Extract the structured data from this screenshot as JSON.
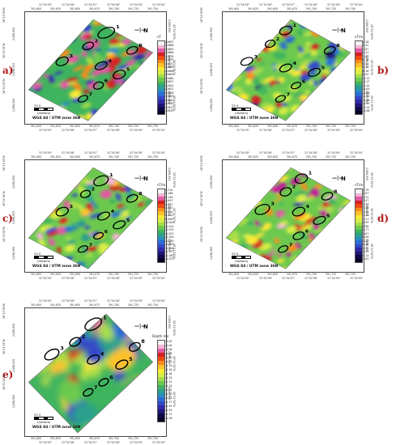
{
  "panels": [
    {
      "tag": "a)",
      "color_title": "nT",
      "lon_labels": [
        "31°54'55\"",
        "31°54'56\"",
        "31°54'57\"",
        "31°54'58\"",
        "31°54'59\"",
        "31°55'00\""
      ],
      "east_labels": [
        "391,600",
        "391,625",
        "391,650",
        "391,675",
        "391,700",
        "391,725",
        "391,750"
      ],
      "lat_labels": [
        "26°11'00\"N",
        "26°11'01\"N",
        "26°11'02\"N"
      ],
      "north_labels": [
        "2,896,950",
        "2,896,925",
        "2,896,900"
      ],
      "scale_text": "25      0",
      "scale_unit": "(meters)",
      "crs": "WGS 84 / UTM zone 36N",
      "legend": [
        "42697",
        "42686",
        "42683",
        "42680",
        "42678",
        "42675",
        "42672",
        "42669",
        "42666",
        "42663",
        "42660",
        "42657",
        "42654",
        "42651",
        "42648",
        "42645",
        "42643",
        "42640",
        "42637",
        "42635"
      ],
      "anomalies": [
        "1",
        "2",
        "3",
        "4",
        "5",
        "6",
        "7",
        "8"
      ]
    },
    {
      "tag": "b)",
      "color_title": "nT/m",
      "lon_labels": [
        "31°54'55\"",
        "31°54'56\"",
        "31°54'57\"",
        "31°54'58\"",
        "31°54'59\"",
        "31°55'00\""
      ],
      "east_labels": [
        "391,600",
        "391,625",
        "391,650",
        "391,675",
        "391,700",
        "391,725",
        "391,750"
      ],
      "lat_labels": [
        "26°11'00\"N",
        "26°11'01\"N",
        "26°11'02\"N"
      ],
      "north_labels": [
        "2,896,950",
        "2,896,925",
        "2,896,900"
      ],
      "scale_text": "25      0",
      "scale_unit": "(meters)",
      "crs": "WGS 84 / UTM zone 36N",
      "legend": [
        "3.26",
        "2.52",
        "1.87",
        "1.41",
        "1.02",
        "0.74",
        "0.51",
        "0.32",
        "0.16",
        "0.02",
        "-0.12",
        "-0.27",
        "-0.44",
        "-0.63",
        "-0.86",
        "-1.14",
        "-1.48",
        "-1.93",
        "-2.54",
        "-3.66"
      ],
      "anomalies": [
        "1",
        "2",
        "3",
        "4",
        "5",
        "6",
        "7",
        "8"
      ]
    },
    {
      "tag": "c)",
      "color_title": "nT/m",
      "lon_labels": [
        "31°54'55\"",
        "31°54'56\"",
        "31°54'57\"",
        "31°54'58\"",
        "31°54'59\"",
        "31°55'00\""
      ],
      "east_labels": [
        "391,600",
        "391,625",
        "391,650",
        "391,675",
        "391,700",
        "391,725",
        "391,750"
      ],
      "lat_labels": [
        "26°11'00\"N",
        "26°11'01\"N",
        "26°11'02\"N"
      ],
      "north_labels": [
        "2,896,950",
        "2,896,925",
        "2,896,900"
      ],
      "scale_text": "25      0",
      "scale_unit": "(meters)",
      "crs": "WGS 84 / UTM zone 36N",
      "legend": [
        "0.210",
        "0.166",
        "0.128",
        "0.097",
        "0.072",
        "0.051",
        "0.034",
        "0.020",
        "0.008",
        "-0.003",
        "-0.014",
        "-0.025",
        "-0.037",
        "-0.050",
        "-0.065",
        "-0.083",
        "-0.106",
        "-0.137",
        "-0.180",
        "-0.253"
      ],
      "anomalies": [
        "1",
        "2",
        "3",
        "4",
        "5",
        "6",
        "7",
        "8"
      ]
    },
    {
      "tag": "d)",
      "color_title": "nT/m",
      "lon_labels": [
        "31°54'55\"",
        "31°54'56\"",
        "31°54'57\"",
        "31°54'58\"",
        "31°54'59\"",
        "31°55'00\""
      ],
      "east_labels": [
        "391,600",
        "391,625",
        "391,650",
        "391,675",
        "391,700",
        "391,725",
        "391,750"
      ],
      "lat_labels": [
        "26°11'00\"N",
        "26°11'01\"N",
        "26°11'02\"N"
      ],
      "north_labels": [
        "2,896,950",
        "2,896,925",
        "2,896,900"
      ],
      "scale_text": "25      0",
      "scale_unit": "(meters)",
      "crs": "WGS 84 / UTM zone 36N",
      "legend": [
        "3.79",
        "2.87",
        "2.32",
        "1.97",
        "1.73",
        "1.54",
        "1.38",
        "1.24",
        "1.11",
        "0.99",
        "0.88",
        "0.77",
        "0.67",
        "0.58",
        "0.49",
        "0.40",
        "0.31",
        "0.23",
        "0.14",
        "0.05"
      ],
      "anomalies": [
        "1",
        "2",
        "3",
        "4",
        "5",
        "6",
        "7",
        "8"
      ]
    },
    {
      "tag": "e)",
      "color_title": "Depth (m)",
      "lon_labels": [
        "31°54'55\"",
        "31°54'56\"",
        "31°54'57\"",
        "31°54'58\"",
        "31°54'59\"",
        "31°55'00\""
      ],
      "east_labels": [
        "391,600",
        "391,625",
        "391,650",
        "391,675",
        "391,700",
        "391,725",
        "391,750"
      ],
      "lat_labels": [
        "26°11'00\"N",
        "26°11'01\"N",
        "26°11'02\"N"
      ],
      "north_labels": [
        "2,896,950",
        "2,896,925",
        "2,896,900"
      ],
      "scale_text": "25      0",
      "scale_unit": "(meters)",
      "crs": "WGS 84 / UTM zone 36N",
      "legend": [
        "-1.03",
        "-1.04",
        "-1.06",
        "-1.08",
        "-1.10",
        "-1.12",
        "-1.14",
        "-1.16",
        "-1.18",
        "-1.20",
        "-1.22",
        "-1.24",
        "-1.27",
        "-1.30",
        "-1.33",
        "-1.37",
        "-1.43",
        "-1.50",
        "-1.72",
        "-2.26"
      ],
      "anomalies": [
        "1",
        "2",
        "3",
        "4",
        "5",
        "6",
        "7",
        "8"
      ]
    }
  ],
  "palettes": {
    "rainbow": [
      "#f3f3f3",
      "#f7b3d6",
      "#e15aa2",
      "#d62020",
      "#f04a12",
      "#fb8c1a",
      "#fcc12b",
      "#fbe934",
      "#d7ee45",
      "#a7dd4a",
      "#6cc94e",
      "#3fb45e",
      "#2ba08c",
      "#2a8ec1",
      "#2b6dd6",
      "#3449c8",
      "#2f2aa8",
      "#201677",
      "#10094a",
      "#050220"
    ]
  }
}
